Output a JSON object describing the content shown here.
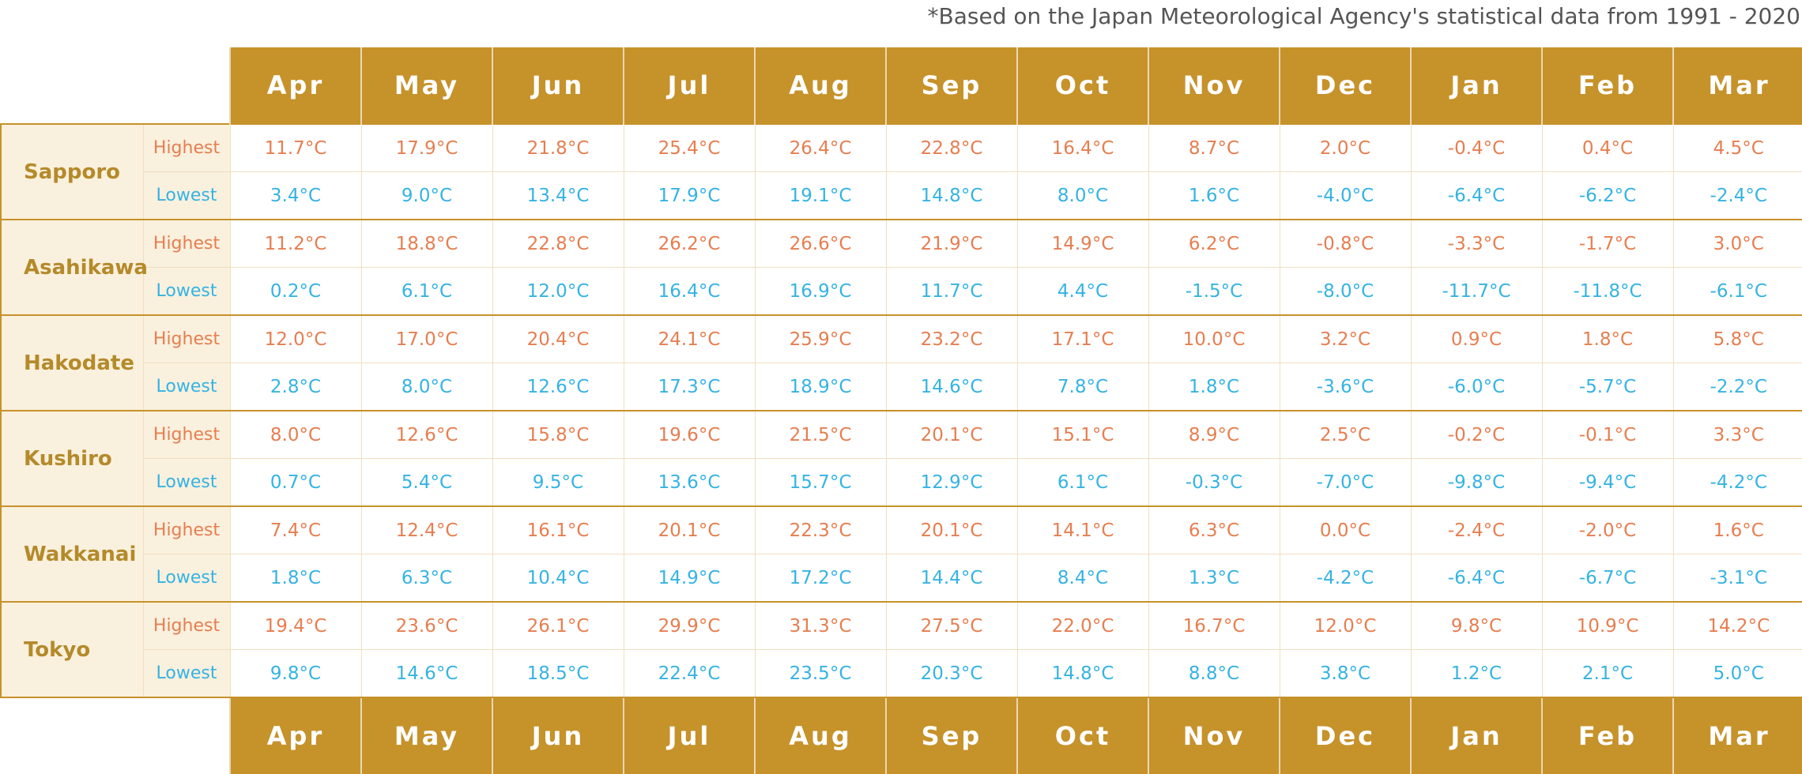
{
  "note": "*Based on the Japan Meteorological Agency's statistical data from 1991 - 2020",
  "labels": {
    "highest": "Highest",
    "lowest": "Lowest"
  },
  "colors": {
    "header_bg": "#c6922a",
    "highest": "#e67e50",
    "lowest": "#35b3e2",
    "city_bg": "#faf0de",
    "city_text": "#b48a2a"
  },
  "chart_data": {
    "type": "table",
    "months": [
      "Apr",
      "May",
      "Jun",
      "Jul",
      "Aug",
      "Sep",
      "Oct",
      "Nov",
      "Dec",
      "Jan",
      "Feb",
      "Mar"
    ],
    "cities": [
      {
        "name": "Sapporo",
        "highest": [
          "11.7°C",
          "17.9°C",
          "21.8°C",
          "25.4°C",
          "26.4°C",
          "22.8°C",
          "16.4°C",
          "8.7°C",
          "2.0°C",
          "-0.4°C",
          "0.4°C",
          "4.5°C"
        ],
        "lowest": [
          "3.4°C",
          "9.0°C",
          "13.4°C",
          "17.9°C",
          "19.1°C",
          "14.8°C",
          "8.0°C",
          "1.6°C",
          "-4.0°C",
          "-6.4°C",
          "-6.2°C",
          "-2.4°C"
        ]
      },
      {
        "name": "Asahikawa",
        "highest": [
          "11.2°C",
          "18.8°C",
          "22.8°C",
          "26.2°C",
          "26.6°C",
          "21.9°C",
          "14.9°C",
          "6.2°C",
          "-0.8°C",
          "-3.3°C",
          "-1.7°C",
          "3.0°C"
        ],
        "lowest": [
          "0.2°C",
          "6.1°C",
          "12.0°C",
          "16.4°C",
          "16.9°C",
          "11.7°C",
          "4.4°C",
          "-1.5°C",
          "-8.0°C",
          "-11.7°C",
          "-11.8°C",
          "-6.1°C"
        ]
      },
      {
        "name": "Hakodate",
        "highest": [
          "12.0°C",
          "17.0°C",
          "20.4°C",
          "24.1°C",
          "25.9°C",
          "23.2°C",
          "17.1°C",
          "10.0°C",
          "3.2°C",
          "0.9°C",
          "1.8°C",
          "5.8°C"
        ],
        "lowest": [
          "2.8°C",
          "8.0°C",
          "12.6°C",
          "17.3°C",
          "18.9°C",
          "14.6°C",
          "7.8°C",
          "1.8°C",
          "-3.6°C",
          "-6.0°C",
          "-5.7°C",
          "-2.2°C"
        ]
      },
      {
        "name": "Kushiro",
        "highest": [
          "8.0°C",
          "12.6°C",
          "15.8°C",
          "19.6°C",
          "21.5°C",
          "20.1°C",
          "15.1°C",
          "8.9°C",
          "2.5°C",
          "-0.2°C",
          "-0.1°C",
          "3.3°C"
        ],
        "lowest": [
          "0.7°C",
          "5.4°C",
          "9.5°C",
          "13.6°C",
          "15.7°C",
          "12.9°C",
          "6.1°C",
          "-0.3°C",
          "-7.0°C",
          "-9.8°C",
          "-9.4°C",
          "-4.2°C"
        ]
      },
      {
        "name": "Wakkanai",
        "highest": [
          "7.4°C",
          "12.4°C",
          "16.1°C",
          "20.1°C",
          "22.3°C",
          "20.1°C",
          "14.1°C",
          "6.3°C",
          "0.0°C",
          "-2.4°C",
          "-2.0°C",
          "1.6°C"
        ],
        "lowest": [
          "1.8°C",
          "6.3°C",
          "10.4°C",
          "14.9°C",
          "17.2°C",
          "14.4°C",
          "8.4°C",
          "1.3°C",
          "-4.2°C",
          "-6.4°C",
          "-6.7°C",
          "-3.1°C"
        ]
      },
      {
        "name": "Tokyo",
        "highest": [
          "19.4°C",
          "23.6°C",
          "26.1°C",
          "29.9°C",
          "31.3°C",
          "27.5°C",
          "22.0°C",
          "16.7°C",
          "12.0°C",
          "9.8°C",
          "10.9°C",
          "14.2°C"
        ],
        "lowest": [
          "9.8°C",
          "14.6°C",
          "18.5°C",
          "22.4°C",
          "23.5°C",
          "20.3°C",
          "14.8°C",
          "8.8°C",
          "3.8°C",
          "1.2°C",
          "2.1°C",
          "5.0°C"
        ]
      }
    ]
  }
}
